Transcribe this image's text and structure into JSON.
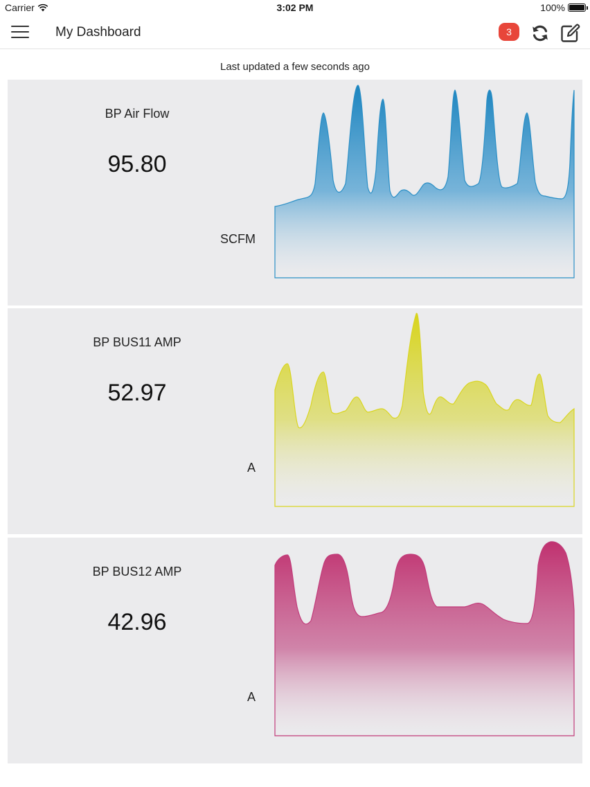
{
  "status_bar": {
    "carrier": "Carrier",
    "time": "3:02 PM",
    "battery": "100%"
  },
  "header": {
    "title": "My Dashboard",
    "notification_count": "3"
  },
  "last_updated": "Last updated a few seconds ago",
  "widgets": [
    {
      "name": "BP Air Flow",
      "value": "95.80",
      "unit": "SCFM",
      "color": "#2b8fc6"
    },
    {
      "name": "BP BUS11 AMP",
      "value": "52.97",
      "unit": "A",
      "color": "#d9d521"
    },
    {
      "name": "BP BUS12 AMP",
      "value": "42.96",
      "unit": "A",
      "color": "#c13b7a"
    }
  ],
  "colors": {
    "badge": "#e8463a",
    "card_background": "#ebebed"
  },
  "icons": [
    "menu-icon",
    "wifi-icon",
    "battery-icon",
    "refresh-icon",
    "edit-icon"
  ]
}
